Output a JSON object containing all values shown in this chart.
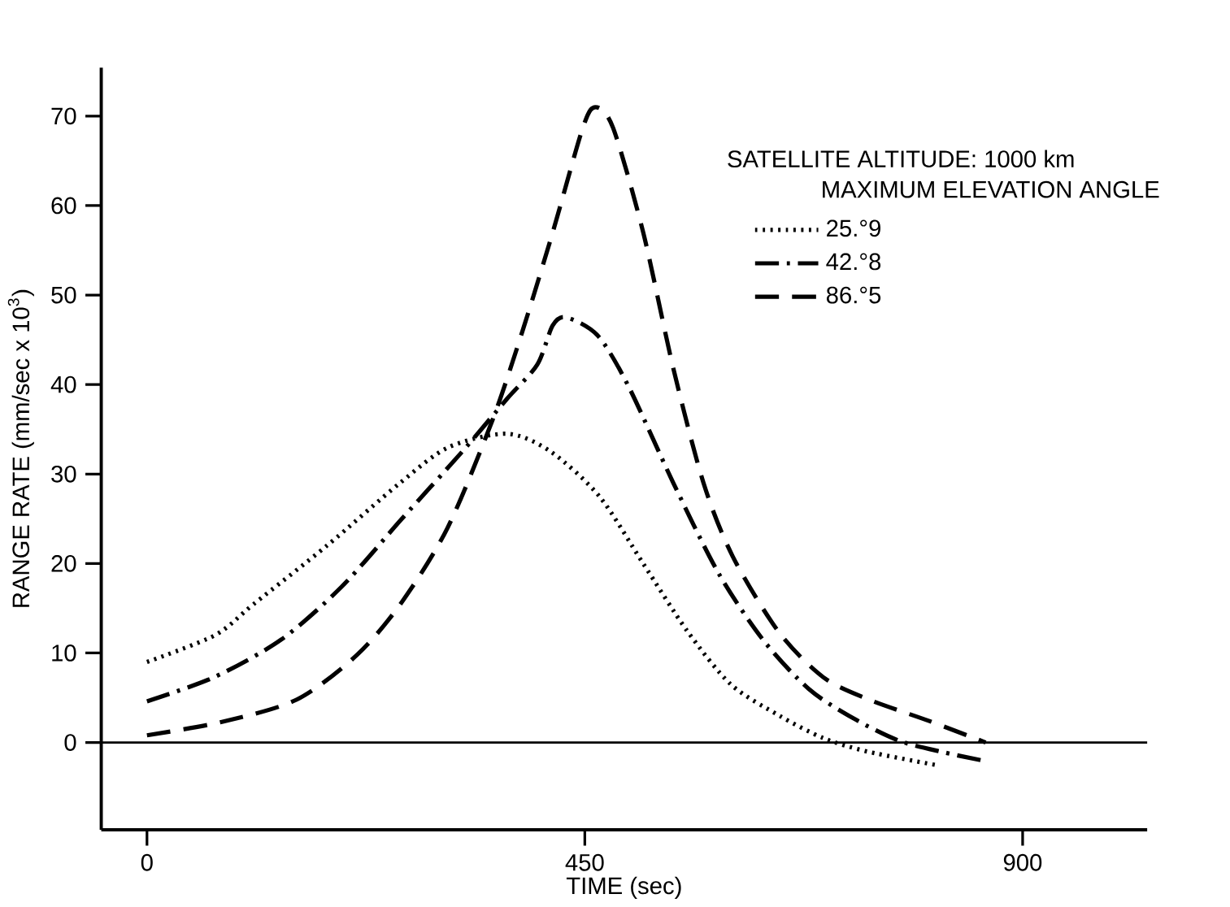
{
  "chart_data": {
    "type": "line",
    "xlabel": "TIME (sec)",
    "ylabel": "RANGE RATE (mm/sec x 10$^{3}$)",
    "legend_title": "MAXIMUM ELEVATION ANGLE",
    "annotations": [
      "SATELLITE ALTITUDE: 1000 km"
    ],
    "xlim": [
      -47,
      1028
    ],
    "ylim": [
      -9.75,
      75.4
    ],
    "xticks": [
      0,
      450,
      900
    ],
    "yticks": [
      0,
      10,
      20,
      30,
      40,
      50,
      60,
      70
    ],
    "legend": "top right",
    "grid": false,
    "ref_lines": [
      {
        "axis": "y",
        "value": 0,
        "color": "#000000",
        "line_style": "solid"
      }
    ],
    "series": [
      {
        "name": "25.°9",
        "color": "#000000",
        "line_style": "dotted",
        "x": [
          0,
          70,
          110,
          185,
          260,
          310,
          370,
          415,
          465,
          510,
          555,
          600,
          650,
          695,
          740,
          810
        ],
        "values": [
          9,
          12,
          15.5,
          22,
          29,
          33,
          34.5,
          32.5,
          27.5,
          20,
          12.5,
          6.5,
          3,
          0.5,
          -1,
          -2.5
        ]
      },
      {
        "name": "42.°8",
        "color": "#000000",
        "line_style": "dashdotted",
        "x": [
          0,
          69,
          138,
          200,
          262,
          324,
          370,
          401,
          417,
          431,
          463,
          494,
          541,
          587,
          633,
          680,
          726,
          773,
          819,
          858
        ],
        "values": [
          4.6,
          7.3,
          11.5,
          17.4,
          25,
          32.5,
          38.4,
          42.2,
          46.6,
          47.5,
          45.5,
          40,
          29,
          19,
          11.5,
          6,
          2.7,
          0.2,
          -1.1,
          -2
        ]
      },
      {
        "name": "86.°5",
        "color": "#000000",
        "line_style": "dashed",
        "x": [
          0,
          77,
          154,
          216,
          262,
          309,
          355,
          386,
          417,
          448,
          461,
          479,
          510,
          541,
          572,
          602,
          649,
          695,
          742,
          804,
          862
        ],
        "values": [
          0.8,
          2.3,
          4.8,
          9.8,
          15.7,
          24,
          36,
          46,
          57,
          68.7,
          71,
          68.7,
          57,
          41.8,
          29,
          20.8,
          12.4,
          7.3,
          4.8,
          2.4,
          0
        ]
      }
    ]
  }
}
